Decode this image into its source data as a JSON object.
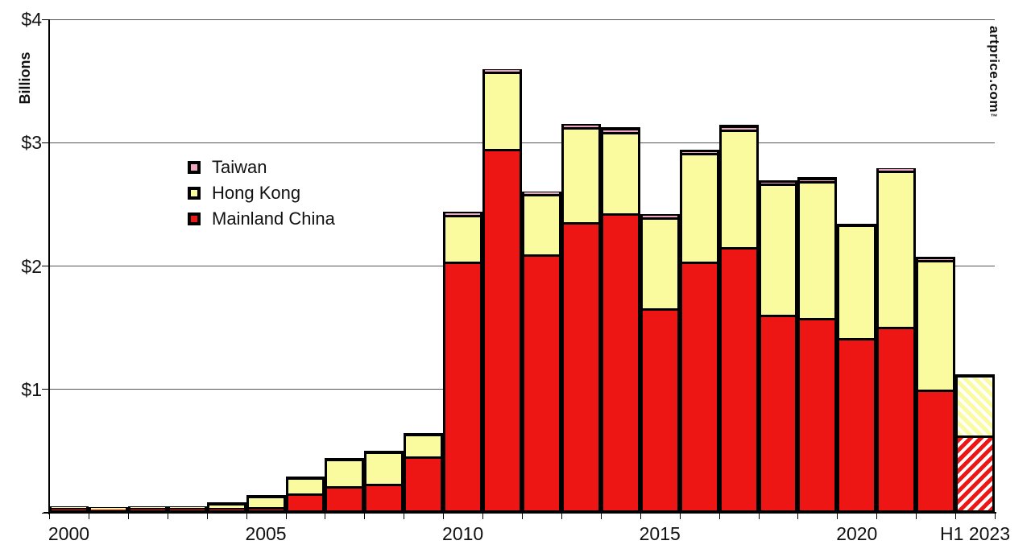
{
  "chart_data": {
    "type": "bar",
    "stacked": true,
    "title": "",
    "xlabel": "",
    "ylabel": "Billions",
    "ylim": [
      0,
      4
    ],
    "yticks": [
      0,
      1,
      2,
      3,
      4
    ],
    "ytick_labels": [
      "",
      "$1",
      "$2",
      "$3",
      "$4"
    ],
    "grid": true,
    "legend_position": "upper-left-inside",
    "categories": [
      "2000",
      "2001",
      "2002",
      "2003",
      "2004",
      "2005",
      "2006",
      "2007",
      "2008",
      "2009",
      "2010",
      "2011",
      "2012",
      "2013",
      "2014",
      "2015",
      "2016",
      "2017",
      "2018",
      "2019",
      "2020",
      "2021",
      "2022",
      "H1 2023"
    ],
    "xtick_labels_shown": [
      {
        "index": 0,
        "label": "2000"
      },
      {
        "index": 5,
        "label": "2005"
      },
      {
        "index": 10,
        "label": "2010"
      },
      {
        "index": 15,
        "label": "2015"
      },
      {
        "index": 20,
        "label": "2020"
      },
      {
        "index": 23,
        "label": "H1 2023"
      }
    ],
    "series": [
      {
        "name": "Mainland China",
        "color": "#ee1515",
        "values": [
          0.02,
          0.01,
          0.02,
          0.02,
          0.02,
          0.03,
          0.14,
          0.2,
          0.22,
          0.44,
          2.02,
          2.93,
          2.08,
          2.34,
          2.41,
          1.64,
          2.02,
          2.14,
          1.59,
          1.56,
          1.4,
          1.49,
          0.98,
          0.61
        ]
      },
      {
        "name": "Hong Kong",
        "color": "#fafa9e",
        "values": [
          0.01,
          0.01,
          0.01,
          0.01,
          0.04,
          0.09,
          0.13,
          0.22,
          0.26,
          0.18,
          0.38,
          0.63,
          0.49,
          0.77,
          0.66,
          0.74,
          0.88,
          0.95,
          1.06,
          1.11,
          0.92,
          1.27,
          1.05,
          0.49
        ]
      },
      {
        "name": "Taiwan",
        "color": "#eda6c4",
        "values": [
          0,
          0,
          0,
          0,
          0,
          0,
          0,
          0,
          0,
          0,
          0.02,
          0.01,
          0.01,
          0.02,
          0.03,
          0.02,
          0.02,
          0.03,
          0.02,
          0.03,
          0,
          0.01,
          0.02,
          0
        ]
      }
    ],
    "hatched_category": "H1 2023",
    "units_prefix": "$"
  },
  "legend": {
    "items": [
      {
        "label": "Taiwan",
        "color": "#eda6c4"
      },
      {
        "label": "Hong Kong",
        "color": "#fafa9e"
      },
      {
        "label": "Mainland China",
        "color": "#ee1515"
      }
    ]
  },
  "watermark": {
    "text": "artprice.com",
    "tm": "™"
  }
}
